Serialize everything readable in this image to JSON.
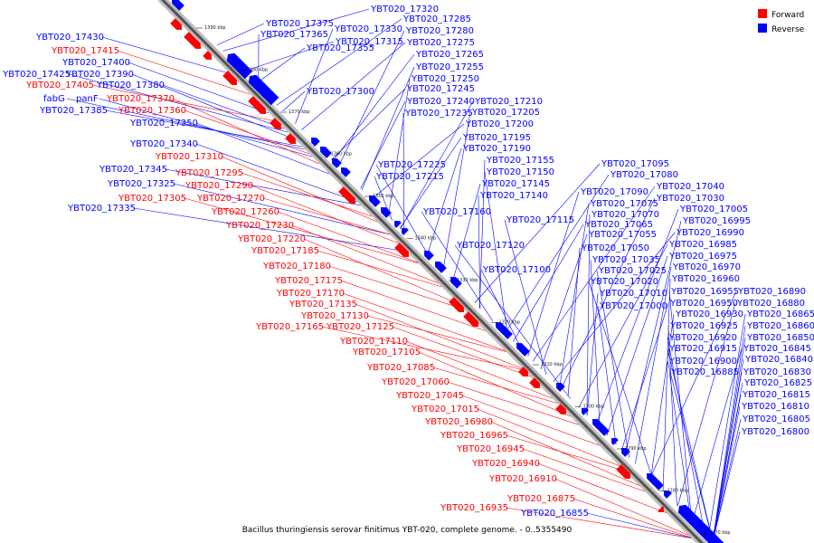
{
  "caption": "Bacillus thuringiensis serovar finitimus YBT-020, complete genome. - 0..5355490",
  "legend": [
    {
      "label": "Forward",
      "color": "#ff0000"
    },
    {
      "label": "Reverse",
      "color": "#0000ff"
    }
  ],
  "ticks": [
    "1390 kbp",
    "1380 kbp",
    "1370 kbp",
    "1360 kbp",
    "1350 kbp",
    "1340 kbp",
    "1330 kbp",
    "1320 kbp",
    "1310 kbp",
    "1300 kbp",
    "1290 kbp",
    "1280 kbp",
    "1270 kbp"
  ],
  "left_labels": [
    {
      "text": "YBT020_17430",
      "strand": "reverse"
    },
    {
      "text": "YBT020_17415",
      "strand": "forward"
    },
    {
      "text": "YBT020_17400",
      "strand": "reverse"
    },
    {
      "text": "YBT020_17425",
      "strand": "reverse"
    },
    {
      "text": "YBT020_17390",
      "strand": "reverse"
    },
    {
      "text": "YBT020_17405",
      "strand": "forward"
    },
    {
      "text": "YBT020_17380",
      "strand": "reverse"
    },
    {
      "text": "fabG",
      "strand": "reverse"
    },
    {
      "text": "panF",
      "strand": "reverse"
    },
    {
      "text": "YBT020_17370",
      "strand": "forward"
    },
    {
      "text": "YBT020_17385",
      "strand": "reverse"
    },
    {
      "text": "YBT020_17360",
      "strand": "forward"
    },
    {
      "text": "YBT020_17350",
      "strand": "reverse"
    },
    {
      "text": "YBT020_17340",
      "strand": "reverse"
    },
    {
      "text": "YBT020_17310",
      "strand": "forward"
    },
    {
      "text": "YBT020_17345",
      "strand": "reverse"
    },
    {
      "text": "YBT020_17295",
      "strand": "forward"
    },
    {
      "text": "YBT020_17325",
      "strand": "reverse"
    },
    {
      "text": "YBT020_17290",
      "strand": "forward"
    },
    {
      "text": "YBT020_17305",
      "strand": "forward"
    },
    {
      "text": "YBT020_17270",
      "strand": "forward"
    },
    {
      "text": "YBT020_17335",
      "strand": "reverse"
    },
    {
      "text": "YBT020_17260",
      "strand": "forward"
    },
    {
      "text": "YBT020_17230",
      "strand": "forward"
    },
    {
      "text": "YBT020_17220",
      "strand": "forward"
    },
    {
      "text": "YBT020_17185",
      "strand": "forward"
    },
    {
      "text": "YBT020_17180",
      "strand": "forward"
    },
    {
      "text": "YBT020_17175",
      "strand": "forward"
    },
    {
      "text": "YBT020_17170",
      "strand": "forward"
    },
    {
      "text": "YBT020_17135",
      "strand": "forward"
    },
    {
      "text": "YBT020_17130",
      "strand": "forward"
    },
    {
      "text": "YBT020_17165",
      "strand": "forward"
    },
    {
      "text": "YBT020_17125",
      "strand": "forward"
    },
    {
      "text": "YBT020_17110",
      "strand": "forward"
    },
    {
      "text": "YBT020_17105",
      "strand": "forward"
    },
    {
      "text": "YBT020_17085",
      "strand": "forward"
    },
    {
      "text": "YBT020_17060",
      "strand": "forward"
    },
    {
      "text": "YBT020_17045",
      "strand": "forward"
    },
    {
      "text": "YBT020_17015",
      "strand": "forward"
    },
    {
      "text": "YBT020_16980",
      "strand": "forward"
    },
    {
      "text": "YBT020_16965",
      "strand": "forward"
    },
    {
      "text": "YBT020_16945",
      "strand": "forward"
    },
    {
      "text": "YBT020_16940",
      "strand": "forward"
    },
    {
      "text": "YBT020_16910",
      "strand": "forward"
    },
    {
      "text": "YBT020_16875",
      "strand": "forward"
    },
    {
      "text": "YBT020_16935",
      "strand": "forward"
    },
    {
      "text": "YBT020_16855",
      "strand": "reverse"
    }
  ],
  "right_labels": [
    "YBT020_17320",
    "YBT020_17375",
    "YBT020_17285",
    "YBT020_17365",
    "YBT020_17330",
    "YBT020_17280",
    "YBT020_17315",
    "YBT020_17355",
    "YBT020_17275",
    "YBT020_17265",
    "YBT020_17255",
    "YBT020_17250",
    "YBT020_17300",
    "YBT020_17245",
    "YBT020_17240",
    "YBT020_17210",
    "YBT020_17235",
    "YBT020_17205",
    "YBT020_17200",
    "YBT020_17195",
    "YBT020_17190",
    "YBT020_17225",
    "YBT020_17155",
    "YBT020_17150",
    "YBT020_17215",
    "YBT020_17145",
    "YBT020_17140",
    "YBT020_17160",
    "YBT020_17115",
    "YBT020_17120",
    "YBT020_17100",
    "YBT020_17095",
    "YBT020_17080",
    "YBT020_17090",
    "YBT020_17075",
    "YBT020_17070",
    "YBT020_17065",
    "YBT020_17055",
    "YBT020_17050",
    "YBT020_17035",
    "YBT020_17025",
    "YBT020_17020",
    "YBT020_17010",
    "YBT020_17000",
    "YBT020_17040",
    "YBT020_17030",
    "YBT020_17005",
    "YBT020_16995",
    "YBT020_16990",
    "YBT020_16985",
    "YBT020_16975",
    "YBT020_16970",
    "YBT020_16960",
    "YBT020_16955",
    "YBT020_16950",
    "YBT020_16930",
    "YBT020_16925",
    "YBT020_16920",
    "YBT020_16915",
    "YBT020_16900",
    "YBT020_16885",
    "YBT020_16890",
    "YBT020_16880",
    "YBT020_16865",
    "YBT020_16860",
    "YBT020_16850",
    "YBT020_16845",
    "YBT020_16840",
    "YBT020_16830",
    "YBT020_16825",
    "YBT020_16815",
    "YBT020_16810",
    "YBT020_16805",
    "YBT020_16800"
  ]
}
